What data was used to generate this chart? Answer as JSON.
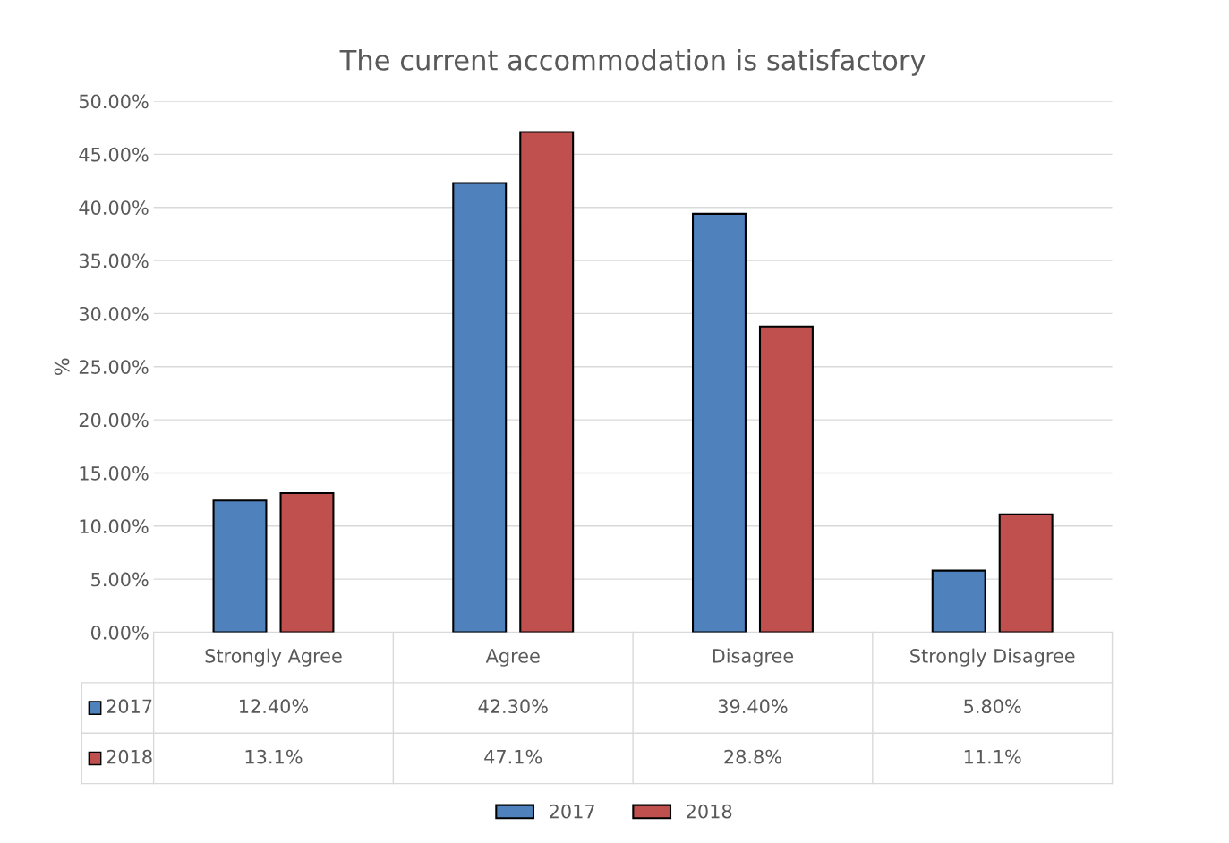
{
  "chart_data": {
    "type": "bar",
    "title": "The current accommodation is satisfactory",
    "ylabel": "%",
    "categories": [
      "Strongly Agree",
      "Agree",
      "Disagree",
      "Strongly Disagree"
    ],
    "series": [
      {
        "name": "2017",
        "color": "#4f81bd",
        "values": [
          12.4,
          42.3,
          39.4,
          5.8
        ],
        "value_labels": [
          "12.40%",
          "42.30%",
          "39.40%",
          "5.80%"
        ]
      },
      {
        "name": "2018",
        "color": "#c0504d",
        "values": [
          13.1,
          47.1,
          28.8,
          11.1
        ],
        "value_labels": [
          "13.1%",
          "47.1%",
          "28.8%",
          "11.1%"
        ]
      }
    ],
    "ylim": [
      0,
      50
    ],
    "yticks": [
      {
        "value": 0,
        "label": "0.00%"
      },
      {
        "value": 5,
        "label": "5.00%"
      },
      {
        "value": 10,
        "label": "10.00%"
      },
      {
        "value": 15,
        "label": "15.00%"
      },
      {
        "value": 20,
        "label": "20.00%"
      },
      {
        "value": 25,
        "label": "25.00%"
      },
      {
        "value": 30,
        "label": "30.00%"
      },
      {
        "value": 35,
        "label": "35.00%"
      },
      {
        "value": 40,
        "label": "40.00%"
      },
      {
        "value": 45,
        "label": "45.00%"
      },
      {
        "value": 50,
        "label": "50.00%"
      }
    ],
    "grid": "y",
    "legend": "bottom"
  }
}
